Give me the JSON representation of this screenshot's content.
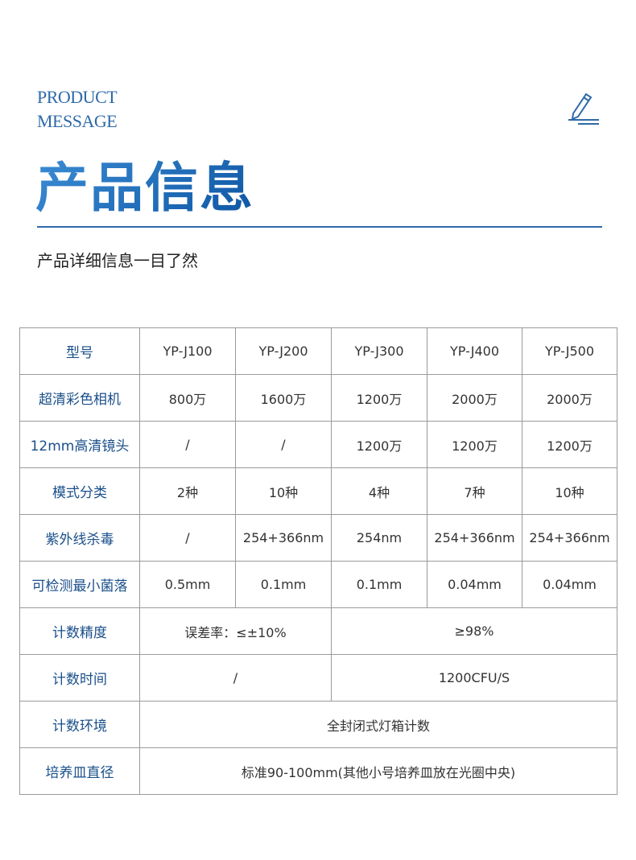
{
  "header": {
    "en_line1": "PRODUCT",
    "en_line2": "MESSAGE",
    "title": "产品信息",
    "subtitle": "产品详细信息一目了然",
    "icon": "pencil-icon",
    "accent": "#2e6aa8"
  },
  "table": {
    "rows": [
      {
        "label": "型号",
        "cells": [
          "YP-J100",
          "YP-J200",
          "YP-J300",
          "YP-J400",
          "YP-J500"
        ]
      },
      {
        "label": "超清彩色相机",
        "cells": [
          "800万",
          "1600万",
          "1200万",
          "2000万",
          "2000万"
        ]
      },
      {
        "label": "12mm高清镜头",
        "cells": [
          "/",
          "/",
          "1200万",
          "1200万",
          "1200万"
        ]
      },
      {
        "label": "模式分类",
        "cells": [
          "2种",
          "10种",
          "4种",
          "7种",
          "10种"
        ]
      },
      {
        "label": "紫外线杀毒",
        "cells": [
          "/",
          "254+366nm",
          "254nm",
          "254+366nm",
          "254+366nm"
        ]
      },
      {
        "label": "可检测最小菌落",
        "cells": [
          "0.5mm",
          "0.1mm",
          "0.1mm",
          "0.04mm",
          "0.04mm"
        ]
      },
      {
        "label": "计数精度",
        "cells": [
          "误差率：≤±10%",
          "≥98%"
        ]
      },
      {
        "label": "计数时间",
        "cells": [
          "/",
          "1200CFU/S"
        ]
      },
      {
        "label": "计数环境",
        "cells": [
          "全封闭式灯箱计数"
        ]
      },
      {
        "label": "培养皿直径",
        "cells": [
          "标准90-100mm(其他小号培养皿放在光圈中央)"
        ]
      }
    ]
  }
}
